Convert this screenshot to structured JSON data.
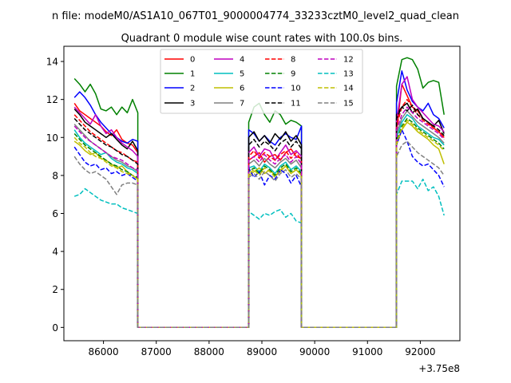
{
  "figure": {
    "suptitle": "n file: modeM0/AS1A10_067T01_9000004774_33233cztM0_level2_quad_clean",
    "title": "Quadrant 0 module wise count rates with 100.0s bins."
  },
  "chart_data": {
    "type": "line",
    "title": "Quadrant 0 module wise count rates with 100.0s bins.",
    "xlabel": "",
    "ylabel": "",
    "x_offset_label": "+3.75e8",
    "xlim": [
      85250,
      92750
    ],
    "ylim": [
      -0.7,
      14.8
    ],
    "x_ticks": [
      86000,
      87000,
      88000,
      89000,
      90000,
      91000,
      92000
    ],
    "x_tick_labels": [
      "86000",
      "87000",
      "88000",
      "89000",
      "90000",
      "91000",
      "92000"
    ],
    "y_ticks": [
      0,
      2,
      4,
      6,
      8,
      10,
      12,
      14
    ],
    "y_tick_labels": [
      "0",
      "2",
      "4",
      "6",
      "8",
      "10",
      "12",
      "14"
    ],
    "grid": false,
    "legend_position": "upper-center",
    "legend_columns": 4,
    "segments": [
      {
        "start": 85450,
        "count": 13
      },
      {
        "start": 88750,
        "count": 11
      },
      {
        "start": 91550,
        "count": 10
      }
    ],
    "gaps_zero": [
      [
        86650,
        86750,
        86850,
        86950,
        87050,
        87150,
        87250,
        87350,
        87450,
        87550,
        87650,
        87750,
        87850,
        87950,
        88050,
        88150,
        88250,
        88350,
        88450,
        88550,
        88650,
        88750
      ],
      [
        89750,
        89850,
        89950,
        90050,
        90150,
        90250,
        90350,
        90450,
        90550,
        90650,
        90750,
        90850,
        90950,
        91050,
        91150,
        91250,
        91350,
        91450,
        91550
      ]
    ],
    "series": [
      {
        "name": "0",
        "color": "#ff0000",
        "dash": "solid",
        "values": [
          [
            11.8,
            11.4,
            11.2,
            11.0,
            10.8,
            10.6,
            10.3,
            10.1,
            10.4,
            9.9,
            9.7,
            9.6,
            9.2
          ],
          [
            8.8,
            9.0,
            9.2,
            8.7,
            9.0,
            9.1,
            8.8,
            9.2,
            9.4,
            9.0,
            8.9
          ],
          [
            10.3,
            12.8,
            12.2,
            11.6,
            11.4,
            11.0,
            10.8,
            10.5,
            10.3,
            10.0
          ]
        ]
      },
      {
        "name": "1",
        "color": "#008000",
        "dash": "solid",
        "values": [
          [
            13.1,
            12.8,
            12.4,
            12.8,
            12.3,
            11.5,
            11.4,
            11.6,
            11.2,
            11.6,
            11.3,
            12.0,
            11.3
          ],
          [
            10.8,
            11.6,
            11.8,
            11.2,
            10.8,
            11.4,
            11.2,
            10.7,
            10.9,
            10.8,
            10.6
          ],
          [
            12.7,
            14.1,
            14.2,
            14.1,
            13.6,
            12.6,
            12.9,
            13.0,
            12.9,
            11.2
          ]
        ]
      },
      {
        "name": "2",
        "color": "#0000ff",
        "dash": "solid",
        "values": [
          [
            12.1,
            12.4,
            12.1,
            11.7,
            11.2,
            10.8,
            10.5,
            10.2,
            10.0,
            9.8,
            9.7,
            9.9,
            9.8
          ],
          [
            10.4,
            10.2,
            9.8,
            10.1,
            9.8,
            9.6,
            10.0,
            10.2,
            10.0,
            9.9,
            10.6
          ],
          [
            11.8,
            13.5,
            12.5,
            11.9,
            11.6,
            11.4,
            11.8,
            11.2,
            11.0,
            10.5
          ]
        ]
      },
      {
        "name": "3",
        "color": "#000000",
        "dash": "solid",
        "values": [
          [
            11.5,
            11.2,
            10.8,
            10.6,
            10.4,
            10.2,
            10.0,
            10.2,
            9.9,
            9.6,
            9.4,
            9.8,
            9.3
          ],
          [
            10.0,
            10.3,
            9.8,
            10.1,
            9.7,
            10.2,
            9.9,
            10.3,
            9.8,
            10.1,
            9.6
          ],
          [
            11.2,
            11.6,
            11.8,
            11.3,
            11.5,
            11.0,
            10.8,
            10.6,
            10.9,
            10.2
          ]
        ]
      },
      {
        "name": "4",
        "color": "#bf00bf",
        "dash": "solid",
        "values": [
          [
            11.6,
            11.3,
            11.0,
            10.7,
            11.2,
            10.6,
            10.2,
            10.4,
            10.0,
            9.7,
            9.5,
            9.3,
            9.0
          ],
          [
            9.2,
            9.5,
            9.0,
            9.4,
            9.3,
            8.8,
            9.2,
            9.6,
            9.1,
            9.3,
            9.0
          ],
          [
            10.8,
            12.8,
            13.2,
            12.0,
            11.6,
            11.3,
            11.0,
            10.7,
            10.6,
            10.3
          ]
        ]
      },
      {
        "name": "5",
        "color": "#00bfbf",
        "dash": "solid",
        "values": [
          [
            10.4,
            10.0,
            9.7,
            9.5,
            9.3,
            9.1,
            9.2,
            8.9,
            8.7,
            8.6,
            8.4,
            8.3,
            8.1
          ],
          [
            8.4,
            8.5,
            8.2,
            8.6,
            8.4,
            8.1,
            8.5,
            8.7,
            8.3,
            8.5,
            8.2
          ],
          [
            10.0,
            10.8,
            11.2,
            11.0,
            10.6,
            10.4,
            10.2,
            10.0,
            9.9,
            9.6
          ]
        ]
      },
      {
        "name": "6",
        "color": "#bfbf00",
        "dash": "solid",
        "values": [
          [
            9.8,
            9.6,
            9.3,
            9.1,
            9.2,
            8.9,
            8.8,
            8.6,
            8.4,
            8.5,
            8.2,
            8.0,
            7.8
          ],
          [
            8.0,
            8.2,
            8.4,
            8.1,
            8.3,
            8.0,
            8.2,
            8.5,
            8.1,
            8.3,
            8.0
          ],
          [
            9.6,
            10.4,
            10.8,
            10.6,
            10.3,
            10.1,
            9.9,
            9.6,
            9.4,
            8.6
          ]
        ]
      },
      {
        "name": "7",
        "color": "#808080",
        "dash": "solid",
        "values": [
          [
            10.7,
            10.4,
            10.1,
            9.8,
            9.6,
            9.4,
            9.2,
            9.0,
            8.8,
            8.7,
            8.5,
            8.4,
            8.2
          ],
          [
            8.6,
            8.8,
            8.5,
            8.9,
            8.6,
            8.4,
            8.7,
            8.9,
            8.6,
            8.8,
            8.4
          ],
          [
            10.2,
            11.0,
            11.4,
            11.1,
            10.8,
            10.6,
            10.4,
            10.2,
            10.0,
            9.7
          ]
        ]
      },
      {
        "name": "8",
        "color": "#ff0000",
        "dash": "dashed",
        "values": [
          [
            11.2,
            10.9,
            10.6,
            10.3,
            10.1,
            9.9,
            9.7,
            9.5,
            9.3,
            9.2,
            9.0,
            8.8,
            8.7
          ],
          [
            9.0,
            9.3,
            8.9,
            9.2,
            9.0,
            8.8,
            9.1,
            9.3,
            8.9,
            9.2,
            8.8
          ],
          [
            10.6,
            11.6,
            12.0,
            11.6,
            11.2,
            10.9,
            10.7,
            10.5,
            10.3,
            10.0
          ]
        ]
      },
      {
        "name": "9",
        "color": "#008000",
        "dash": "dashed",
        "values": [
          [
            10.2,
            9.9,
            9.6,
            9.4,
            9.2,
            9.0,
            8.8,
            8.6,
            8.5,
            8.3,
            8.2,
            8.0,
            7.9
          ],
          [
            8.2,
            8.4,
            8.1,
            8.5,
            8.3,
            8.0,
            8.4,
            8.6,
            8.2,
            8.4,
            8.1
          ],
          [
            9.8,
            10.6,
            11.0,
            10.8,
            10.5,
            10.3,
            10.1,
            9.9,
            9.7,
            9.4
          ]
        ]
      },
      {
        "name": "10",
        "color": "#0000ff",
        "dash": "dashed",
        "values": [
          [
            9.5,
            9.1,
            8.7,
            8.5,
            8.6,
            8.3,
            8.4,
            8.1,
            8.2,
            8.0,
            8.1,
            7.9,
            7.7
          ],
          [
            8.4,
            7.9,
            8.2,
            7.5,
            8.0,
            7.8,
            8.3,
            8.1,
            7.6,
            8.0,
            7.4
          ],
          [
            9.6,
            10.4,
            9.8,
            9.0,
            8.7,
            8.5,
            8.6,
            8.3,
            8.0,
            7.4
          ]
        ]
      },
      {
        "name": "11",
        "color": "#000000",
        "dash": "dashed",
        "values": [
          [
            11.0,
            10.7,
            10.4,
            10.2,
            10.0,
            9.8,
            9.6,
            9.5,
            9.3,
            9.1,
            9.0,
            8.8,
            8.6
          ],
          [
            9.6,
            9.9,
            9.5,
            9.8,
            9.6,
            9.3,
            9.7,
            9.9,
            9.5,
            9.8,
            9.4
          ],
          [
            11.0,
            11.6,
            11.4,
            11.7,
            11.2,
            11.0,
            10.8,
            10.6,
            10.4,
            10.1
          ]
        ]
      },
      {
        "name": "12",
        "color": "#bf00bf",
        "dash": "dashed",
        "values": [
          [
            10.6,
            10.3,
            10.0,
            9.8,
            9.6,
            9.4,
            9.2,
            9.0,
            8.9,
            8.8,
            8.6,
            8.4,
            8.3
          ],
          [
            8.8,
            9.0,
            8.7,
            9.1,
            8.8,
            8.6,
            8.9,
            9.1,
            8.7,
            9.0,
            8.6
          ],
          [
            10.4,
            11.2,
            11.6,
            11.3,
            11.0,
            10.8,
            10.6,
            10.4,
            10.2,
            9.9
          ]
        ]
      },
      {
        "name": "13",
        "color": "#00bfbf",
        "dash": "dashed",
        "values": [
          [
            6.9,
            7.0,
            7.3,
            7.1,
            6.9,
            6.7,
            6.6,
            6.5,
            6.5,
            6.3,
            6.2,
            6.1,
            6.0
          ],
          [
            6.1,
            5.9,
            5.7,
            6.0,
            5.9,
            6.1,
            6.2,
            5.8,
            6.0,
            5.6,
            5.5
          ],
          [
            7.0,
            7.7,
            7.7,
            7.7,
            7.3,
            7.8,
            7.2,
            7.4,
            6.9,
            5.9
          ]
        ]
      },
      {
        "name": "14",
        "color": "#bfbf00",
        "dash": "dashed",
        "values": [
          [
            10.0,
            9.7,
            9.5,
            9.2,
            9.0,
            8.9,
            8.7,
            8.5,
            8.4,
            8.2,
            8.1,
            8.0,
            7.8
          ],
          [
            8.1,
            8.3,
            8.0,
            8.4,
            8.2,
            7.9,
            8.3,
            8.5,
            8.1,
            8.3,
            8.0
          ],
          [
            9.7,
            10.5,
            10.9,
            10.7,
            10.4,
            10.2,
            10.0,
            9.8,
            9.6,
            9.3
          ]
        ]
      },
      {
        "name": "15",
        "color": "#808080",
        "dash": "dashed",
        "values": [
          [
            9.0,
            8.6,
            8.3,
            8.1,
            8.2,
            8.0,
            7.8,
            7.4,
            7.0,
            7.5,
            7.6,
            7.6,
            7.5
          ],
          [
            7.9,
            8.1,
            7.8,
            8.2,
            8.0,
            7.7,
            8.1,
            8.3,
            7.9,
            8.1,
            7.8
          ],
          [
            9.0,
            9.6,
            9.8,
            9.5,
            9.2,
            9.0,
            8.8,
            8.6,
            8.4,
            8.0
          ]
        ]
      }
    ]
  }
}
